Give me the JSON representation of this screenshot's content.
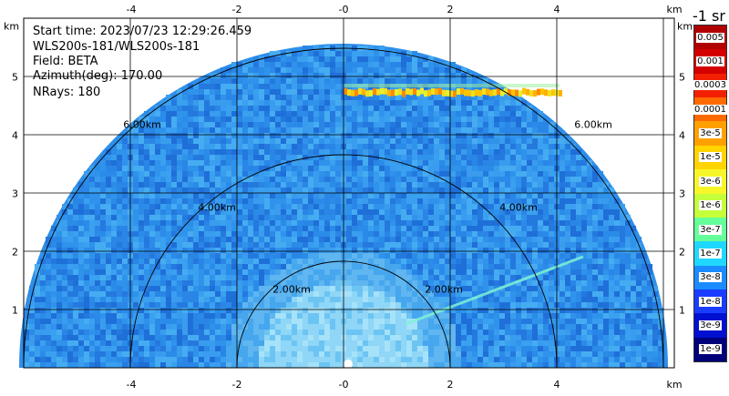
{
  "info": {
    "start_time": "Start time: 2023/07/23 12:29:26.459",
    "instrument": "WLS200s-181/WLS200s-181",
    "field": "Field: BETA",
    "azimuth": "Azimuth(deg): 170.00",
    "nrays": "NRays: 180"
  },
  "axes": {
    "x_unit": "km",
    "y_unit": "km",
    "x_ticks": [
      "-4",
      "-2",
      "-0",
      "2",
      "4"
    ],
    "y_ticks": [
      "1",
      "2",
      "3",
      "4",
      "5"
    ]
  },
  "range_rings": [
    "2.00km",
    "4.00km",
    "6.00km"
  ],
  "colorbar": {
    "unit": "-1 sr",
    "labels": [
      "0.005",
      "0.001",
      "0.0003",
      "0.0001",
      "3e-5",
      "1e-5",
      "3e-6",
      "1e-6",
      "3e-7",
      "1e-7",
      "3e-8",
      "1e-8",
      "3e-9",
      "1e-9"
    ],
    "colors": [
      "#b00000",
      "#d40000",
      "#f22000",
      "#ff6a00",
      "#ffa000",
      "#ffd400",
      "#f6f62a",
      "#c4ff3a",
      "#64ff9a",
      "#20d8ff",
      "#1a8cff",
      "#1a3cff",
      "#0010d0",
      "#00007a"
    ]
  }
}
